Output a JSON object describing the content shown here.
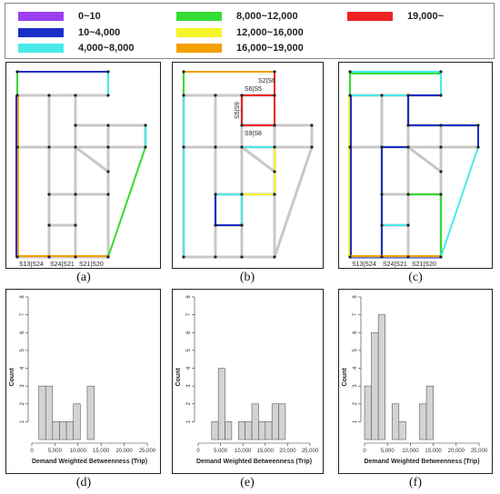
{
  "legend": {
    "items": [
      {
        "label": "0~10",
        "color": "#9b3ff0"
      },
      {
        "label": "8,000~12,000",
        "color": "#33dd33"
      },
      {
        "label": "19,000~",
        "color": "#ee2222"
      },
      {
        "label": "10~4,000",
        "color": "#1a2ec8"
      },
      {
        "label": "12,000~16,000",
        "color": "#f5f52a"
      },
      {
        "label": "4,000~8,000",
        "color": "#48eaea"
      },
      {
        "label": "16,000~19,000",
        "color": "#f5a000"
      }
    ]
  },
  "network_panels": [
    {
      "label": "(a)",
      "annotations": [
        "S13|S24",
        "S24|S21",
        "S21|S20"
      ]
    },
    {
      "label": "(b)",
      "annotations": [
        "S2|S6",
        "S6|S5",
        "S5|S9",
        "S9|S8"
      ]
    },
    {
      "label": "(c)",
      "annotations": [
        "S13|S24",
        "S24|S21",
        "S21|S20"
      ]
    }
  ],
  "chart_data": [
    {
      "type": "bar",
      "label": "(d)",
      "xlabel": "Demand Weighted Betweenness (Trip)",
      "ylabel": "Count",
      "xlim": [
        0,
        25000
      ],
      "ylim": [
        0,
        8
      ],
      "xticks": [
        "0",
        "5,000",
        "10,000",
        "15,000",
        "20,000",
        "25,000"
      ],
      "yticks": [
        "1",
        "2",
        "3",
        "4",
        "5",
        "6",
        "7",
        "8"
      ],
      "bin_width": 1500,
      "bins": [
        {
          "x0": 1500,
          "count": 3
        },
        {
          "x0": 3000,
          "count": 3
        },
        {
          "x0": 4500,
          "count": 1
        },
        {
          "x0": 6000,
          "count": 1
        },
        {
          "x0": 7500,
          "count": 1
        },
        {
          "x0": 9000,
          "count": 2
        },
        {
          "x0": 12000,
          "count": 3
        }
      ]
    },
    {
      "type": "bar",
      "label": "(e)",
      "xlabel": "Demand Weighted Betweenness (Trip)",
      "ylabel": "Count",
      "xlim": [
        0,
        25000
      ],
      "ylim": [
        0,
        8
      ],
      "xticks": [
        "0",
        "5,000",
        "10,000",
        "15,000",
        "20,000",
        "25,000"
      ],
      "yticks": [
        "1",
        "2",
        "3",
        "4",
        "5",
        "6",
        "7",
        "8"
      ],
      "bin_width": 1500,
      "bins": [
        {
          "x0": 3000,
          "count": 1
        },
        {
          "x0": 4500,
          "count": 4
        },
        {
          "x0": 6000,
          "count": 1
        },
        {
          "x0": 9000,
          "count": 1
        },
        {
          "x0": 10500,
          "count": 1
        },
        {
          "x0": 12000,
          "count": 2
        },
        {
          "x0": 13500,
          "count": 1
        },
        {
          "x0": 15000,
          "count": 1
        },
        {
          "x0": 16500,
          "count": 2
        },
        {
          "x0": 18000,
          "count": 2
        }
      ]
    },
    {
      "type": "bar",
      "label": "(f)",
      "xlabel": "Demand Weighted Betweenness (Trip)",
      "ylabel": "Count",
      "xlim": [
        0,
        25000
      ],
      "ylim": [
        0,
        8
      ],
      "xticks": [
        "0",
        "5,000",
        "10,000",
        "15,000",
        "20,000",
        "25,000"
      ],
      "yticks": [
        "1",
        "2",
        "3",
        "4",
        "5",
        "6",
        "7",
        "8"
      ],
      "bin_width": 1500,
      "bins": [
        {
          "x0": 0,
          "count": 3
        },
        {
          "x0": 1500,
          "count": 6
        },
        {
          "x0": 3000,
          "count": 7
        },
        {
          "x0": 6000,
          "count": 2
        },
        {
          "x0": 7500,
          "count": 1
        },
        {
          "x0": 12000,
          "count": 2
        },
        {
          "x0": 13500,
          "count": 3
        }
      ]
    }
  ]
}
